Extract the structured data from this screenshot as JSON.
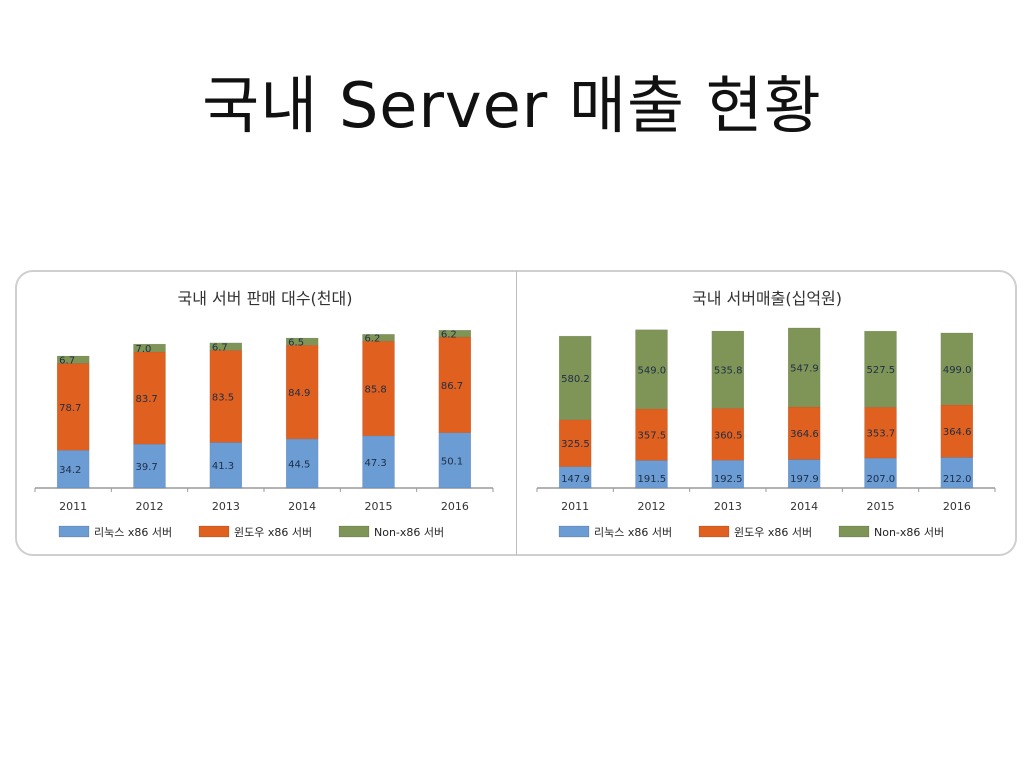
{
  "title": "국내 Server 매출 현황",
  "colors": {
    "linux_fill": "#6b9cd4",
    "windows_fill": "#e0601f",
    "nonx86_fill": "#7f9558",
    "axis": "#9a9a9a",
    "label_text": "#1f2d44"
  },
  "legend_labels": [
    "리눅스 x86 서버",
    "윈도우 x86 서버",
    "Non-x86 서버"
  ],
  "chart_data": [
    {
      "type": "bar",
      "stacked": true,
      "title": "국내 서버 판매 대수(천대)",
      "categories": [
        "2011",
        "2012",
        "2013",
        "2014",
        "2015",
        "2016"
      ],
      "series": [
        {
          "name": "리눅스 x86 서버",
          "values": [
            34.2,
            39.7,
            41.3,
            44.5,
            47.3,
            50.1
          ],
          "labels": [
            "34.2",
            "39.7",
            "41.3",
            "44.5",
            "47.3",
            "50.1"
          ]
        },
        {
          "name": "윈도우 x86 서버",
          "values": [
            78.7,
            83.7,
            83.5,
            84.9,
            85.8,
            86.7
          ],
          "labels": [
            "78.7",
            "83.7",
            "83.5",
            "84.9",
            "85.8",
            "86.7"
          ]
        },
        {
          "name": "Non-x86 서버",
          "values": [
            6.7,
            7.0,
            6.7,
            6.5,
            6.2,
            6.2
          ],
          "labels": [
            "6.7",
            "7.0",
            "6.7",
            "6.5",
            "6.2",
            "6.2"
          ]
        }
      ],
      "ymax": 145,
      "legend": "bottom"
    },
    {
      "type": "bar",
      "stacked": true,
      "title": "국내 서버매출(십억원)",
      "categories": [
        "2011",
        "2012",
        "2013",
        "2014",
        "2015",
        "2016"
      ],
      "series": [
        {
          "name": "리눅스 x86 서버",
          "values": [
            147.9,
            191.5,
            192.5,
            197.9,
            207.0,
            212.0
          ],
          "labels": [
            "147.9",
            "191.5",
            "192.5",
            "197.9",
            "207.0",
            "212.0"
          ]
        },
        {
          "name": "윈도우 x86 서버",
          "values": [
            325.5,
            357.5,
            360.5,
            364.6,
            353.7,
            364.6
          ],
          "labels": [
            "325.5",
            "357.5",
            "360.5",
            "364.6",
            "353.7",
            "364.6"
          ]
        },
        {
          "name": "Non-x86 서버",
          "values": [
            580.2,
            549.0,
            535.8,
            547.9,
            527.5,
            499.0
          ],
          "labels": [
            "580.2",
            "549.0",
            "535.8",
            "547.9",
            "527.5",
            "499.0"
          ]
        }
      ],
      "ymax": 1110,
      "legend": "bottom"
    }
  ]
}
